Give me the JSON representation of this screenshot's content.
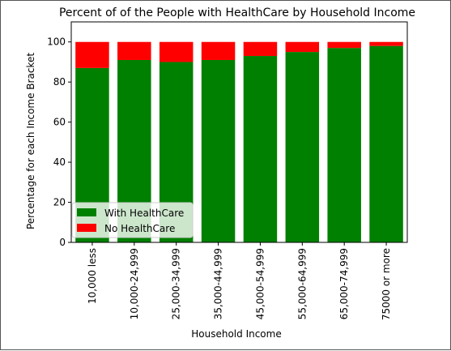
{
  "chart_data": {
    "type": "bar",
    "stacked": true,
    "title": "Percent of  of the People with HealthCare by Household Income",
    "xlabel": "Household Income",
    "ylabel": "Percentage for each Income Bracket",
    "categories": [
      "10,000 less",
      "10,000-24,999",
      "25,000-34,999",
      "35,000-44,999",
      "45,000-54,999",
      "55,000-64,999",
      "65,000-74,999",
      "75000 or more"
    ],
    "series": [
      {
        "name": "With HealthCare",
        "color": "#008000",
        "values": [
          87,
          91,
          90,
          91,
          93,
          95,
          97,
          98
        ]
      },
      {
        "name": "No HealthCare",
        "color": "#ff0000",
        "values": [
          13,
          9,
          10,
          9,
          7,
          5,
          3,
          2
        ]
      }
    ],
    "ylim": [
      0,
      110
    ],
    "yticks": [
      0,
      20,
      40,
      60,
      80,
      100
    ],
    "grid": false,
    "legend_position": "lower-left"
  }
}
